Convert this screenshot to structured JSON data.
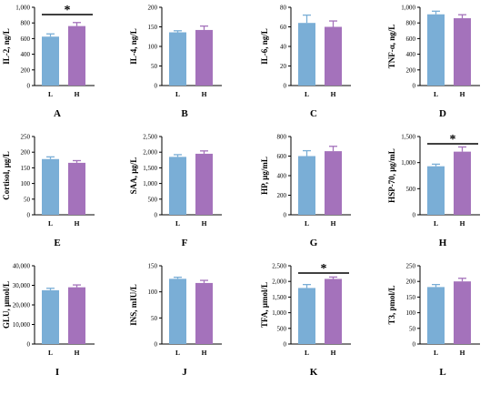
{
  "colors": {
    "L": "#7aaed6",
    "H": "#a472bb",
    "axis": "#000000"
  },
  "chart_data": [
    {
      "letter": "A",
      "type": "bar",
      "ylabel": "IL-2, ng/L",
      "categories": [
        "L",
        "H"
      ],
      "values": [
        625,
        760
      ],
      "errors": [
        35,
        45
      ],
      "ylim": [
        0,
        1000
      ],
      "ticks": [
        "0",
        "200",
        "400",
        "600",
        "800",
        "1,000"
      ],
      "sig": "*"
    },
    {
      "letter": "B",
      "type": "bar",
      "ylabel": "IL-4, ng/L",
      "categories": [
        "L",
        "H"
      ],
      "values": [
        136,
        142
      ],
      "errors": [
        4,
        10
      ],
      "ylim": [
        0,
        200
      ],
      "ticks": [
        "0",
        "50",
        "100",
        "150",
        "200"
      ],
      "sig": ""
    },
    {
      "letter": "C",
      "type": "bar",
      "ylabel": "IL-6, ng/L",
      "categories": [
        "L",
        "H"
      ],
      "values": [
        64,
        60
      ],
      "errors": [
        8,
        6
      ],
      "ylim": [
        0,
        80
      ],
      "ticks": [
        "0",
        "20",
        "40",
        "60",
        "80"
      ],
      "sig": ""
    },
    {
      "letter": "D",
      "type": "bar",
      "ylabel": "TNF-α, ng/L",
      "categories": [
        "L",
        "H"
      ],
      "values": [
        910,
        860
      ],
      "errors": [
        40,
        45
      ],
      "ylim": [
        0,
        1000
      ],
      "ticks": [
        "0",
        "200",
        "400",
        "600",
        "800",
        "1,000"
      ],
      "sig": ""
    },
    {
      "letter": "E",
      "type": "bar",
      "ylabel": "Cortisol, μg/L",
      "categories": [
        "L",
        "H"
      ],
      "values": [
        178,
        166
      ],
      "errors": [
        7,
        7
      ],
      "ylim": [
        0,
        250
      ],
      "ticks": [
        "0",
        "50",
        "100",
        "150",
        "200",
        "250"
      ],
      "sig": ""
    },
    {
      "letter": "F",
      "type": "bar",
      "ylabel": "SAA, μg/L",
      "categories": [
        "L",
        "H"
      ],
      "values": [
        1850,
        1950
      ],
      "errors": [
        70,
        90
      ],
      "ylim": [
        0,
        2500
      ],
      "ticks": [
        "0",
        "500",
        "1,000",
        "1,500",
        "2,000",
        "2,500"
      ],
      "sig": ""
    },
    {
      "letter": "G",
      "type": "bar",
      "ylabel": "HP, μg/mL",
      "categories": [
        "L",
        "H"
      ],
      "values": [
        600,
        650
      ],
      "errors": [
        55,
        50
      ],
      "ylim": [
        0,
        800
      ],
      "ticks": [
        "0",
        "200",
        "400",
        "600",
        "800"
      ],
      "sig": ""
    },
    {
      "letter": "H",
      "type": "bar",
      "ylabel": "HSP-70, μg/mL",
      "categories": [
        "L",
        "H"
      ],
      "values": [
        930,
        1210
      ],
      "errors": [
        40,
        90
      ],
      "ylim": [
        0,
        1500
      ],
      "ticks": [
        "0",
        "500",
        "1,000",
        "1,500"
      ],
      "sig": "*"
    },
    {
      "letter": "I",
      "type": "bar",
      "ylabel": "GLU, μmol/L",
      "categories": [
        "L",
        "H"
      ],
      "values": [
        27500,
        29000
      ],
      "errors": [
        1000,
        1200
      ],
      "ylim": [
        0,
        40000
      ],
      "ticks": [
        "0",
        "10,000",
        "20,000",
        "30,000",
        "40,000"
      ],
      "sig": ""
    },
    {
      "letter": "J",
      "type": "bar",
      "ylabel": "INS, mIU/L",
      "categories": [
        "L",
        "H"
      ],
      "values": [
        125,
        117
      ],
      "errors": [
        3,
        5
      ],
      "ylim": [
        0,
        150
      ],
      "ticks": [
        "0",
        "50",
        "100",
        "150"
      ],
      "sig": ""
    },
    {
      "letter": "K",
      "type": "bar",
      "ylabel": "TFA, μmol/L",
      "categories": [
        "L",
        "H"
      ],
      "values": [
        1790,
        2080
      ],
      "errors": [
        110,
        60
      ],
      "ylim": [
        0,
        2500
      ],
      "ticks": [
        "0",
        "500",
        "1,000",
        "1,500",
        "2,000",
        "2,500"
      ],
      "sig": "*"
    },
    {
      "letter": "L",
      "type": "bar",
      "ylabel": "T3, pmol/L",
      "categories": [
        "L",
        "H"
      ],
      "values": [
        182,
        200
      ],
      "errors": [
        8,
        10
      ],
      "ylim": [
        0,
        250
      ],
      "ticks": [
        "0",
        "50",
        "100",
        "150",
        "200",
        "250"
      ],
      "sig": ""
    }
  ]
}
